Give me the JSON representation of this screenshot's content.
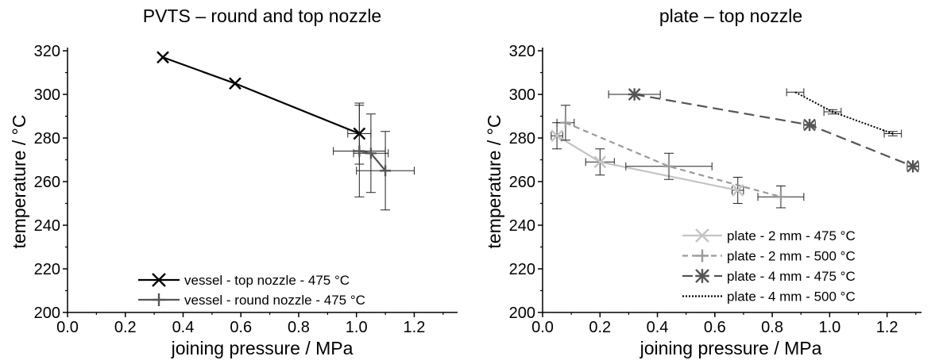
{
  "chart_data": [
    {
      "type": "line",
      "title": "PVTS – round and top nozzle",
      "xlabel": "joining pressure / MPa",
      "ylabel": "temperature / °C",
      "xlim": [
        0.0,
        1.35
      ],
      "ylim": [
        200,
        320
      ],
      "xticks": [
        "0.0",
        "0.2",
        "0.4",
        "0.6",
        "0.8",
        "1.0",
        "1.2"
      ],
      "yticks": [
        "200",
        "220",
        "240",
        "260",
        "280",
        "300",
        "320"
      ],
      "legend_position": "bottom-right",
      "grid": false,
      "series": [
        {
          "name": "vessel - top nozzle - 475 °C",
          "color": "#000000",
          "marker": "x",
          "dash": "solid",
          "points": [
            {
              "x": 0.33,
              "y": 317,
              "xerr": 0,
              "yerr": 0
            },
            {
              "x": 0.58,
              "y": 305,
              "xerr": 0,
              "yerr": 0
            },
            {
              "x": 1.01,
              "y": 282,
              "xerr": 0.04,
              "yerr": 14
            }
          ]
        },
        {
          "name": "vessel - round nozzle - 475 °C",
          "color": "#555555",
          "marker": "plus",
          "dash": "solid",
          "points": [
            {
              "x": 1.01,
              "y": 274,
              "xerr": 0.09,
              "yerr": 21
            },
            {
              "x": 1.05,
              "y": 273,
              "xerr": 0.06,
              "yerr": 18
            },
            {
              "x": 1.1,
              "y": 265,
              "xerr": 0.1,
              "yerr": 18
            }
          ]
        }
      ]
    },
    {
      "type": "line",
      "title": "plate – top nozzle",
      "xlabel": "joining pressure / MPa",
      "ylabel": "temperature / °C",
      "xlim": [
        0.0,
        1.32
      ],
      "ylim": [
        200,
        320
      ],
      "xticks": [
        "0.0",
        "0.2",
        "0.4",
        "0.6",
        "0.8",
        "1.0",
        "1.2"
      ],
      "yticks": [
        "200",
        "220",
        "240",
        "260",
        "280",
        "300",
        "320"
      ],
      "legend_position": "bottom-right",
      "grid": false,
      "series": [
        {
          "name": "plate - 2 mm - 475 °C",
          "color": "#c4c4c4",
          "marker": "x",
          "dash": "solid",
          "points": [
            {
              "x": 0.05,
              "y": 281,
              "xerr": 0.02,
              "yerr": 6
            },
            {
              "x": 0.2,
              "y": 269,
              "xerr": 0.05,
              "yerr": 6
            },
            {
              "x": 0.68,
              "y": 256,
              "xerr": 0.02,
              "yerr": 6
            }
          ]
        },
        {
          "name": "plate - 2 mm - 500 °C",
          "color": "#9a9a9a",
          "marker": "plus",
          "dash": "dash",
          "points": [
            {
              "x": 0.08,
              "y": 287,
              "xerr": 0.03,
              "yerr": 8
            },
            {
              "x": 0.44,
              "y": 267,
              "xerr": 0.15,
              "yerr": 6
            },
            {
              "x": 0.83,
              "y": 253,
              "xerr": 0.08,
              "yerr": 5
            }
          ]
        },
        {
          "name": "plate - 4 mm - 475 °C",
          "color": "#555555",
          "marker": "asterisk",
          "dash": "longdash",
          "points": [
            {
              "x": 0.32,
              "y": 300,
              "xerr": 0.09,
              "yerr": 0
            },
            {
              "x": 0.93,
              "y": 286,
              "xerr": 0.02,
              "yerr": 0
            },
            {
              "x": 1.29,
              "y": 267,
              "xerr": 0.02,
              "yerr": 0
            }
          ]
        },
        {
          "name": "plate - 4 mm - 500 °C",
          "color": "#000000",
          "marker": "none",
          "dash": "dot",
          "points": [
            {
              "x": 0.88,
              "y": 301,
              "xerr": 0.03,
              "yerr": 0
            },
            {
              "x": 1.01,
              "y": 292,
              "xerr": 0.03,
              "yerr": 1
            },
            {
              "x": 1.22,
              "y": 282,
              "xerr": 0.03,
              "yerr": 1
            }
          ]
        }
      ]
    }
  ]
}
